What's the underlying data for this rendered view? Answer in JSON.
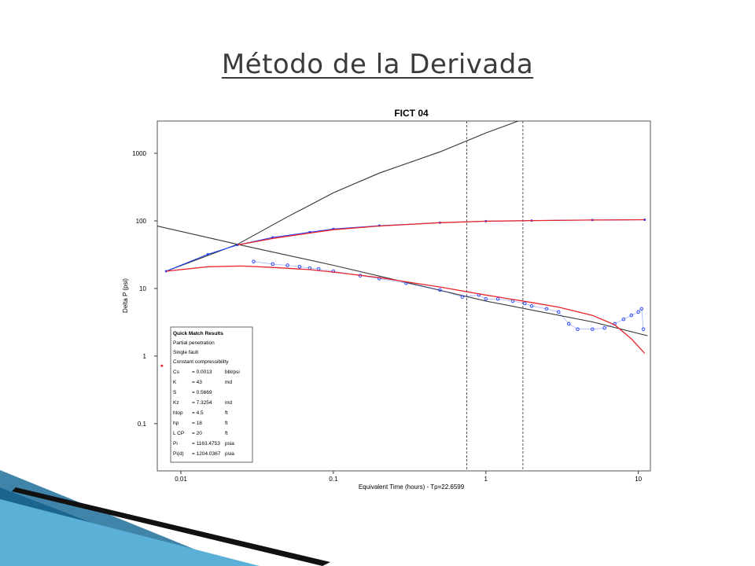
{
  "slide": {
    "title": "Método de la Derivada",
    "accent_colors": [
      "#1f6f9a",
      "#5ab0d6",
      "#0d3b57",
      "#111111"
    ]
  },
  "chart_data": {
    "type": "scatter",
    "title": "FICT   04",
    "xlabel": "Equivalent Time (hours) - Tp=22.6599",
    "ylabel": "Delta P (psi)",
    "x_scale": "log",
    "y_scale": "log",
    "xlim": [
      0.007,
      12
    ],
    "ylim": [
      0.02,
      3000
    ],
    "x_ticks": [
      0.01,
      0.1,
      1,
      10
    ],
    "x_tick_labels": [
      "0.01",
      "0.1",
      "1",
      "10"
    ],
    "y_ticks": [
      0.1,
      1,
      10,
      100,
      1000
    ],
    "y_tick_labels": [
      "0.1",
      "1",
      "10",
      "100",
      "1000"
    ],
    "grid": false,
    "vertical_lines": [
      0.75,
      1.75
    ],
    "series": [
      {
        "role": "unit-slope line",
        "style": "black solid line",
        "color": "#333333",
        "x": [
          0.008,
          0.0235,
          0.05,
          0.1,
          0.2,
          0.5,
          1,
          1.63
        ],
        "y": [
          18,
          45,
          115,
          260,
          510,
          1050,
          2000,
          3000
        ]
      },
      {
        "role": "negative half-slope line",
        "style": "black solid line",
        "color": "#333333",
        "x": [
          0.007,
          0.0235,
          0.1,
          1,
          5,
          11.5
        ],
        "y": [
          84,
          45,
          22,
          6.5,
          3.2,
          2
        ]
      },
      {
        "role": "pressure data",
        "style": "blue points",
        "color": "#1f3fff",
        "x": [
          0.008,
          0.015,
          0.0235,
          0.04,
          0.07,
          0.1,
          0.2,
          0.5,
          1,
          2,
          5,
          11
        ],
        "y": [
          18,
          32,
          44,
          57,
          68,
          76,
          85,
          94,
          99,
          101,
          103,
          104
        ]
      },
      {
        "role": "pressure model",
        "style": "red line",
        "color": "#e8242a",
        "x": [
          0.0235,
          0.04,
          0.07,
          0.1,
          0.2,
          0.5,
          1,
          2,
          5,
          11
        ],
        "y": [
          44,
          55,
          66,
          74,
          84,
          94,
          99,
          101,
          103,
          104
        ]
      },
      {
        "role": "derivative data",
        "style": "blue circles",
        "color": "#1f3fff",
        "x": [
          0.03,
          0.04,
          0.05,
          0.06,
          0.07,
          0.08,
          0.1,
          0.15,
          0.2,
          0.3,
          0.5,
          0.7,
          0.9,
          1,
          1.2,
          1.5,
          1.8,
          2,
          2.5,
          3,
          3.5,
          4,
          5,
          6,
          7,
          8,
          9,
          10,
          10.5,
          10.8
        ],
        "y": [
          25,
          23,
          22,
          21,
          20,
          19.5,
          18,
          15.5,
          14,
          12,
          9.5,
          7.5,
          8,
          7,
          7,
          6.5,
          6,
          5.5,
          5,
          4.5,
          3,
          2.5,
          2.5,
          2.6,
          3,
          3.5,
          4,
          4.5,
          5,
          2.5
        ]
      },
      {
        "role": "derivative model",
        "style": "red line",
        "color": "#e8242a",
        "x": [
          0.008,
          0.015,
          0.025,
          0.04,
          0.07,
          0.1,
          0.2,
          0.5,
          1,
          2,
          3,
          5,
          7,
          9,
          11
        ],
        "y": [
          18,
          21,
          21.5,
          20.5,
          19,
          17.5,
          14.5,
          10.5,
          8,
          6.2,
          5.3,
          4,
          2.9,
          1.8,
          1.1
        ]
      },
      {
        "role": "red outlier",
        "style": "red point",
        "color": "#e8242a",
        "x": [
          0.0075
        ],
        "y": [
          0.72
        ]
      }
    ],
    "legend": {
      "placement": "bottom-left",
      "title": "Quick Match Results",
      "lines": [
        "Partial penetration",
        "Single fault",
        "Constant compressibility"
      ],
      "params": [
        {
          "name": "Cs",
          "value": "= 0.0013",
          "unit": "bbl/psi"
        },
        {
          "name": "K",
          "value": "= 43",
          "unit": "md"
        },
        {
          "name": "S",
          "value": "= 0.5669",
          "unit": ""
        },
        {
          "name": "Kz",
          "value": "= 7.3254",
          "unit": "md"
        },
        {
          "name": "htop",
          "value": "= 4.5",
          "unit": "ft"
        },
        {
          "name": "hp",
          "value": "= 18",
          "unit": "ft"
        },
        {
          "name": "L CP",
          "value": "= 20",
          "unit": "ft"
        },
        {
          "name": "Pi",
          "value": "= 1163.4753",
          "unit": "psia"
        },
        {
          "name": "Pi(d)",
          "value": "= 1204.0367",
          "unit": "psia"
        }
      ]
    }
  }
}
